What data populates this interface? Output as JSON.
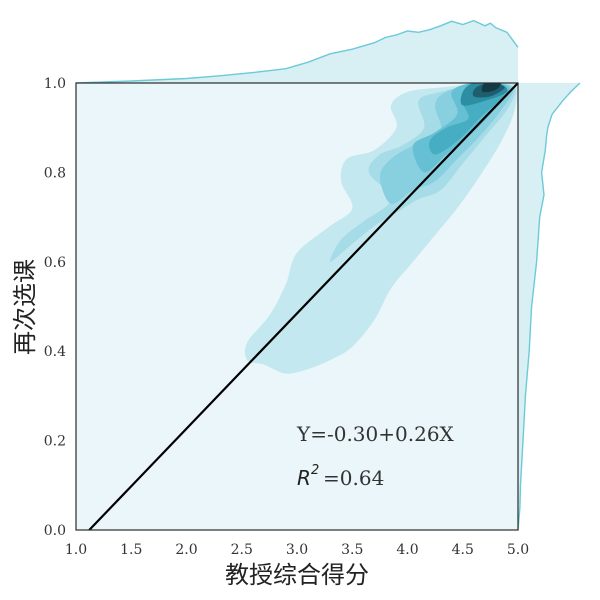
{
  "chart_data": {
    "type": "scatter",
    "title": "",
    "xlabel": "教授综合得分",
    "ylabel": "再次选课",
    "xlim": [
      1.0,
      5.0
    ],
    "ylim": [
      0.0,
      1.0
    ],
    "x_ticks": [
      "1.0",
      "1.5",
      "2.0",
      "2.5",
      "3.0",
      "3.5",
      "4.0",
      "4.5",
      "5.0"
    ],
    "y_ticks": [
      "0.0",
      "0.2",
      "0.4",
      "0.6",
      "0.8",
      "1.0"
    ],
    "regression": {
      "equation_label": "Y=-0.30+0.26X",
      "r2_symbol": "R",
      "r2_power": "2",
      "r2_value": "=0.64",
      "intercept": -0.3,
      "slope": 0.26,
      "line_points": [
        [
          1.12,
          0.0
        ],
        [
          5.0,
          1.0
        ]
      ]
    },
    "density_peak": {
      "x": 4.75,
      "y": 0.99
    },
    "kde_contours": [
      [
        [
          2.55,
          0.38
        ],
        [
          2.7,
          0.37
        ],
        [
          2.9,
          0.35
        ],
        [
          3.1,
          0.36
        ],
        [
          3.3,
          0.38
        ],
        [
          3.5,
          0.41
        ],
        [
          3.7,
          0.47
        ],
        [
          3.85,
          0.54
        ],
        [
          4.05,
          0.6
        ],
        [
          4.25,
          0.66
        ],
        [
          4.45,
          0.72
        ],
        [
          4.65,
          0.79
        ],
        [
          4.85,
          0.87
        ],
        [
          4.97,
          0.94
        ],
        [
          4.97,
          1.0
        ],
        [
          4.75,
          1.0
        ],
        [
          4.3,
          0.99
        ],
        [
          4.0,
          0.98
        ],
        [
          3.85,
          0.95
        ],
        [
          3.9,
          0.9
        ],
        [
          3.7,
          0.85
        ],
        [
          3.45,
          0.83
        ],
        [
          3.4,
          0.78
        ],
        [
          3.5,
          0.72
        ],
        [
          3.3,
          0.68
        ],
        [
          3.0,
          0.62
        ],
        [
          2.9,
          0.55
        ],
        [
          2.75,
          0.48
        ],
        [
          2.55,
          0.42
        ]
      ],
      [
        [
          3.3,
          0.6
        ],
        [
          3.5,
          0.64
        ],
        [
          3.7,
          0.68
        ],
        [
          3.9,
          0.71
        ],
        [
          4.1,
          0.74
        ],
        [
          4.3,
          0.76
        ],
        [
          4.5,
          0.82
        ],
        [
          4.7,
          0.88
        ],
        [
          4.9,
          0.94
        ],
        [
          4.97,
          0.99
        ],
        [
          4.7,
          1.0
        ],
        [
          4.3,
          0.98
        ],
        [
          4.1,
          0.96
        ],
        [
          4.15,
          0.9
        ],
        [
          3.95,
          0.86
        ],
        [
          3.75,
          0.84
        ],
        [
          3.65,
          0.8
        ],
        [
          3.85,
          0.74
        ],
        [
          3.6,
          0.69
        ],
        [
          3.4,
          0.65
        ]
      ],
      [
        [
          3.85,
          0.73
        ],
        [
          4.05,
          0.76
        ],
        [
          4.25,
          0.78
        ],
        [
          4.45,
          0.83
        ],
        [
          4.65,
          0.88
        ],
        [
          4.85,
          0.94
        ],
        [
          4.95,
          0.99
        ],
        [
          4.65,
          1.0
        ],
        [
          4.35,
          0.98
        ],
        [
          4.25,
          0.95
        ],
        [
          4.3,
          0.89
        ],
        [
          4.05,
          0.86
        ],
        [
          3.85,
          0.83
        ],
        [
          3.75,
          0.79
        ]
      ],
      [
        [
          4.15,
          0.8
        ],
        [
          4.35,
          0.84
        ],
        [
          4.55,
          0.88
        ],
        [
          4.75,
          0.93
        ],
        [
          4.92,
          0.99
        ],
        [
          4.6,
          1.0
        ],
        [
          4.4,
          0.98
        ],
        [
          4.45,
          0.93
        ],
        [
          4.25,
          0.89
        ],
        [
          4.05,
          0.86
        ]
      ],
      [
        [
          4.25,
          0.84
        ],
        [
          4.45,
          0.87
        ],
        [
          4.65,
          0.92
        ],
        [
          4.88,
          0.98
        ],
        [
          4.6,
          1.0
        ],
        [
          4.5,
          0.96
        ],
        [
          4.55,
          0.92
        ],
        [
          4.35,
          0.9
        ],
        [
          4.2,
          0.87
        ]
      ],
      [
        [
          4.5,
          0.95
        ],
        [
          4.7,
          0.96
        ],
        [
          4.9,
          0.98
        ],
        [
          4.82,
          1.0
        ],
        [
          4.6,
          1.0
        ],
        [
          4.5,
          0.98
        ]
      ],
      [
        [
          4.6,
          0.97
        ],
        [
          4.75,
          0.97
        ],
        [
          4.88,
          0.99
        ],
        [
          4.75,
          1.0
        ],
        [
          4.62,
          0.99
        ]
      ],
      [
        [
          4.68,
          0.98
        ],
        [
          4.8,
          0.985
        ],
        [
          4.84,
          1.0
        ],
        [
          4.7,
          1.0
        ]
      ]
    ],
    "marginal_x": {
      "x": [
        1.0,
        1.5,
        2.0,
        2.3,
        2.6,
        2.9,
        3.1,
        3.3,
        3.5,
        3.7,
        3.8,
        3.9,
        4.0,
        4.1,
        4.2,
        4.3,
        4.4,
        4.5,
        4.6,
        4.7,
        4.75,
        4.8,
        4.9,
        5.0
      ],
      "density": [
        0.0,
        0.03,
        0.07,
        0.11,
        0.16,
        0.22,
        0.32,
        0.45,
        0.52,
        0.62,
        0.7,
        0.74,
        0.8,
        0.78,
        0.82,
        0.88,
        0.95,
        0.9,
        0.96,
        0.88,
        0.92,
        0.85,
        0.78,
        0.55
      ]
    },
    "marginal_y": {
      "y": [
        0.0,
        0.05,
        0.1,
        0.2,
        0.3,
        0.4,
        0.5,
        0.6,
        0.7,
        0.75,
        0.8,
        0.85,
        0.88,
        0.9,
        0.93,
        0.96,
        0.98,
        1.0
      ],
      "density": [
        0.0,
        0.03,
        0.04,
        0.08,
        0.12,
        0.18,
        0.22,
        0.3,
        0.35,
        0.42,
        0.38,
        0.44,
        0.46,
        0.48,
        0.55,
        0.72,
        0.85,
        1.0
      ]
    },
    "colors": {
      "background": "#eaf6f9",
      "levels": [
        "#c4e8ef",
        "#a6dce7",
        "#88cfdf",
        "#66c0d3",
        "#47adc3",
        "#2d8ea3",
        "#1d5f6e",
        "#143b45"
      ],
      "marginal_fill": "#d8eff4",
      "marginal_line": "#6ccad9",
      "regression_line": "#000000",
      "frame": "#2b2b2b"
    },
    "grid": false,
    "legend": "none"
  }
}
